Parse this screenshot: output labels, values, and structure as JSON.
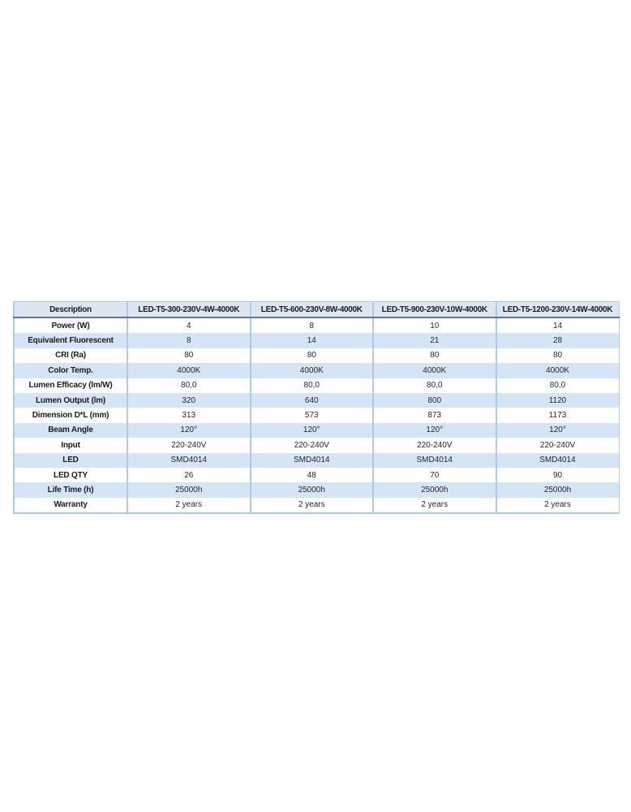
{
  "table": {
    "columns": [
      "Description",
      "LED-T5-300-230V-4W-4000K",
      "LED-T5-600-230V-8W-4000K",
      "LED-T5-900-230V-10W-4000K",
      "LED-T5-1200-230V-14W-4000K"
    ],
    "rows": [
      {
        "label": "Power (W)",
        "values": [
          "4",
          "8",
          "10",
          "14"
        ]
      },
      {
        "label": "Equivalent Fluorescent",
        "values": [
          "8",
          "14",
          "21",
          "28"
        ]
      },
      {
        "label": "CRI (Ra)",
        "values": [
          "80",
          "80",
          "80",
          "80"
        ]
      },
      {
        "label": "Color Temp.",
        "values": [
          "4000K",
          "4000K",
          "4000K",
          "4000K"
        ]
      },
      {
        "label": "Lumen Efficacy (lm/W)",
        "values": [
          "80,0",
          "80,0",
          "80,0",
          "80,0"
        ]
      },
      {
        "label": "Lumen Output (lm)",
        "values": [
          "320",
          "640",
          "800",
          "1120"
        ]
      },
      {
        "label": "Dimension D*L (mm)",
        "values": [
          "313",
          "573",
          "873",
          "1173"
        ]
      },
      {
        "label": "Beam Angle",
        "values": [
          "120°",
          "120°",
          "120°",
          "120°"
        ]
      },
      {
        "label": "Input",
        "values": [
          "220-240V",
          "220-240V",
          "220-240V",
          "220-240V"
        ]
      },
      {
        "label": "LED",
        "values": [
          "SMD4014",
          "SMD4014",
          "SMD4014",
          "SMD4014"
        ]
      },
      {
        "label": "LED QTY",
        "values": [
          "26",
          "48",
          "70",
          "90"
        ]
      },
      {
        "label": "Life Time (h)",
        "values": [
          "25000h",
          "25000h",
          "25000h",
          "25000h"
        ]
      },
      {
        "label": "Warranty",
        "values": [
          "2 years",
          "2 years",
          "2 years",
          "2 years"
        ]
      }
    ],
    "colors": {
      "header_bg": "#dde6f0",
      "stripe_bg": "#d5e5f5",
      "grid_border": "#aecbe9",
      "header_separator": "#5f7899",
      "header_text": "#1b1b1b",
      "value_text": "#262626"
    }
  }
}
